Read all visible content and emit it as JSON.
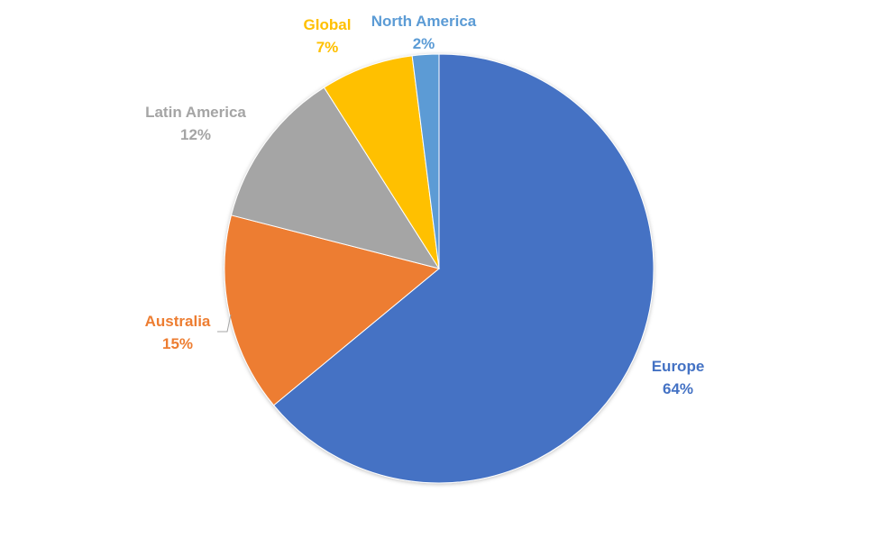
{
  "chart_data": {
    "type": "pie",
    "title": "",
    "slices": [
      {
        "label": "Europe",
        "value": 64,
        "display": "64%",
        "color": "#4472C4"
      },
      {
        "label": "Australia",
        "value": 15,
        "display": "15%",
        "color": "#ED7D31"
      },
      {
        "label": "Latin America",
        "value": 12,
        "display": "12%",
        "color": "#A5A5A5"
      },
      {
        "label": "Global",
        "value": 7,
        "display": "7%",
        "color": "#FFC000"
      },
      {
        "label": "North America",
        "value": 2,
        "display": "2%",
        "color": "#5B9BD5"
      }
    ],
    "start_angle_deg": 0,
    "direction": "clockwise",
    "legend": "none",
    "label_style": "outside-with-percent"
  }
}
